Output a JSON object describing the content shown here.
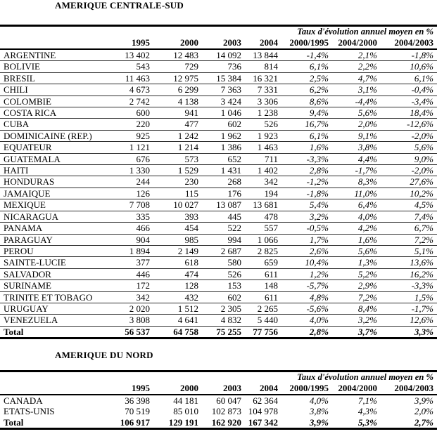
{
  "sections": [
    {
      "title": "AMERIQUE CENTRALE-SUD",
      "rate_group_header": "Taux d'évolution annuel moyen en %",
      "columns": [
        "1995",
        "2000",
        "2003",
        "2004",
        "2000/1995",
        "2004/2000",
        "2004/2003"
      ],
      "rows": [
        {
          "name": "ARGENTINE",
          "values": [
            "13 402",
            "12 483",
            "14 092",
            "13 844"
          ],
          "rates": [
            "-1,4%",
            "2,1%",
            "-1,8%"
          ]
        },
        {
          "name": "BOLIVIE",
          "values": [
            "543",
            "729",
            "736",
            "814"
          ],
          "rates": [
            "6,1%",
            "2,2%",
            "10,6%"
          ]
        },
        {
          "name": "BRESIL",
          "values": [
            "11 463",
            "12 975",
            "15 384",
            "16 321"
          ],
          "rates": [
            "2,5%",
            "4,7%",
            "6,1%"
          ]
        },
        {
          "name": "CHILI",
          "values": [
            "4 673",
            "6 299",
            "7 363",
            "7 331"
          ],
          "rates": [
            "6,2%",
            "3,1%",
            "-0,4%"
          ]
        },
        {
          "name": "COLOMBIE",
          "values": [
            "2 742",
            "4 138",
            "3 424",
            "3 306"
          ],
          "rates": [
            "8,6%",
            "-4,4%",
            "-3,4%"
          ]
        },
        {
          "name": "COSTA RICA",
          "values": [
            "600",
            "941",
            "1 046",
            "1 238"
          ],
          "rates": [
            "9,4%",
            "5,6%",
            "18,4%"
          ]
        },
        {
          "name": "CUBA",
          "values": [
            "220",
            "477",
            "602",
            "526"
          ],
          "rates": [
            "16,7%",
            "2,0%",
            "-12,6%"
          ]
        },
        {
          "name": "DOMINICAINE (REP.)",
          "values": [
            "925",
            "1 242",
            "1 962",
            "1 923"
          ],
          "rates": [
            "6,1%",
            "9,1%",
            "-2,0%"
          ]
        },
        {
          "name": "EQUATEUR",
          "values": [
            "1 121",
            "1 214",
            "1 386",
            "1 463"
          ],
          "rates": [
            "1,6%",
            "3,8%",
            "5,6%"
          ]
        },
        {
          "name": "GUATEMALA",
          "values": [
            "676",
            "573",
            "652",
            "711"
          ],
          "rates": [
            "-3,3%",
            "4,4%",
            "9,0%"
          ]
        },
        {
          "name": "HAITI",
          "values": [
            "1 330",
            "1 529",
            "1 431",
            "1 402"
          ],
          "rates": [
            "2,8%",
            "-1,7%",
            "-2,0%"
          ]
        },
        {
          "name": "HONDURAS",
          "values": [
            "244",
            "230",
            "268",
            "342"
          ],
          "rates": [
            "-1,2%",
            "8,3%",
            "27,6%"
          ]
        },
        {
          "name": "JAMAIQUE",
          "values": [
            "126",
            "115",
            "176",
            "194"
          ],
          "rates": [
            "-1,8%",
            "11,0%",
            "10,2%"
          ]
        },
        {
          "name": "MEXIQUE",
          "values": [
            "7 708",
            "10 027",
            "13 087",
            "13 681"
          ],
          "rates": [
            "5,4%",
            "6,4%",
            "4,5%"
          ]
        },
        {
          "name": "NICARAGUA",
          "values": [
            "335",
            "393",
            "445",
            "478"
          ],
          "rates": [
            "3,2%",
            "4,0%",
            "7,4%"
          ]
        },
        {
          "name": "PANAMA",
          "values": [
            "466",
            "454",
            "522",
            "557"
          ],
          "rates": [
            "-0,5%",
            "4,2%",
            "6,7%"
          ]
        },
        {
          "name": "PARAGUAY",
          "values": [
            "904",
            "985",
            "994",
            "1 066"
          ],
          "rates": [
            "1,7%",
            "1,6%",
            "7,2%"
          ]
        },
        {
          "name": "PEROU",
          "values": [
            "1 894",
            "2 149",
            "2 687",
            "2 825"
          ],
          "rates": [
            "2,6%",
            "5,6%",
            "5,1%"
          ]
        },
        {
          "name": "SAINTE-LUCIE",
          "values": [
            "377",
            "618",
            "580",
            "659"
          ],
          "rates": [
            "10,4%",
            "1,3%",
            "13,6%"
          ]
        },
        {
          "name": "SALVADOR",
          "values": [
            "446",
            "474",
            "526",
            "611"
          ],
          "rates": [
            "1,2%",
            "5,2%",
            "16,2%"
          ]
        },
        {
          "name": "SURINAME",
          "values": [
            "172",
            "128",
            "153",
            "148"
          ],
          "rates": [
            "-5,7%",
            "2,9%",
            "-3,3%"
          ]
        },
        {
          "name": "TRINITE ET TOBAGO",
          "values": [
            "342",
            "432",
            "602",
            "611"
          ],
          "rates": [
            "4,8%",
            "7,2%",
            "1,5%"
          ]
        },
        {
          "name": "URUGUAY",
          "values": [
            "2 020",
            "1 512",
            "2 305",
            "2 265"
          ],
          "rates": [
            "-5,6%",
            "8,4%",
            "-1,7%"
          ]
        },
        {
          "name": "VENEZUELA",
          "values": [
            "3 808",
            "4 641",
            "4 832",
            "5 440"
          ],
          "rates": [
            "4,0%",
            "3,2%",
            "12,6%"
          ]
        }
      ],
      "total": {
        "name": "Total",
        "values": [
          "56 537",
          "64 758",
          "75 255",
          "77 756"
        ],
        "rates": [
          "2,8%",
          "3,7%",
          "3,3%"
        ]
      }
    },
    {
      "title": "AMERIQUE DU NORD",
      "rate_group_header": "Taux d'évolution annuel moyen en %",
      "columns": [
        "1995",
        "2000",
        "2003",
        "2004",
        "2000/1995",
        "2004/2000",
        "2004/2003"
      ],
      "rows": [
        {
          "name": "CANADA",
          "values": [
            "36 398",
            "44 181",
            "60 047",
            "62 364"
          ],
          "rates": [
            "4,0%",
            "7,1%",
            "3,9%"
          ]
        },
        {
          "name": "ETATS-UNIS",
          "values": [
            "70 519",
            "85 010",
            "102 873",
            "104 978"
          ],
          "rates": [
            "3,8%",
            "4,3%",
            "2,0%"
          ]
        }
      ],
      "total": {
        "name": "Total",
        "values": [
          "106 917",
          "129 191",
          "162 920",
          "167 342"
        ],
        "rates": [
          "3,9%",
          "5,3%",
          "2,7%"
        ]
      }
    }
  ]
}
